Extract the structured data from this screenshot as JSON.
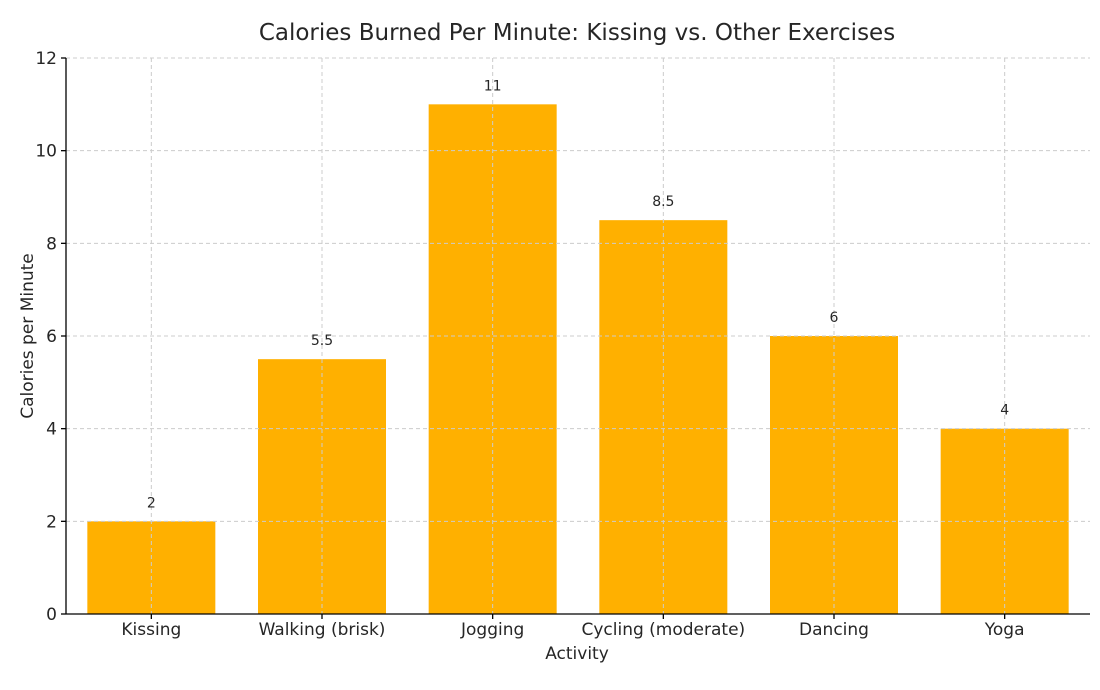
{
  "chart_data": {
    "type": "bar",
    "title": "Calories Burned Per Minute: Kissing vs. Other Exercises",
    "xlabel": "Activity",
    "ylabel": "Calories per Minute",
    "categories": [
      "Kissing",
      "Walking (brisk)",
      "Jogging",
      "Cycling (moderate)",
      "Dancing",
      "Yoga"
    ],
    "values": [
      2,
      5.5,
      11,
      8.5,
      6,
      4
    ],
    "data_labels": [
      "2",
      "5.5",
      "11",
      "8.5",
      "6",
      "4"
    ],
    "ylim": [
      0,
      12
    ],
    "yticks": [
      0,
      2,
      4,
      6,
      8,
      10,
      12
    ],
    "grid": true,
    "bar_color": "#FFB000"
  }
}
